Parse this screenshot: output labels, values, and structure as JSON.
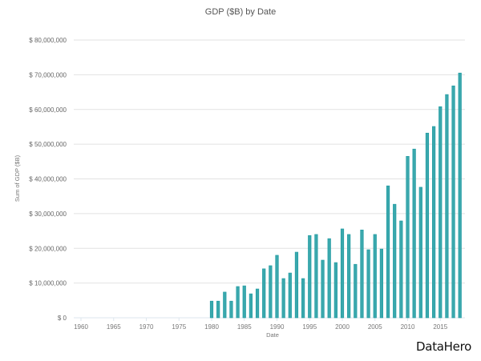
{
  "chart_data": {
    "type": "bar",
    "title": "GDP ($B) by Date",
    "xlabel": "Date",
    "ylabel": "Sum of GDP ($B)",
    "ylim": [
      0,
      80000000
    ],
    "xlim": [
      1960,
      2018
    ],
    "grid": true,
    "legend": "none",
    "bar_color": "#3aa8ad",
    "yticks": [
      {
        "value": 0,
        "label": "$ 0"
      },
      {
        "value": 10000000,
        "label": "$ 10,000,000"
      },
      {
        "value": 20000000,
        "label": "$ 20,000,000"
      },
      {
        "value": 30000000,
        "label": "$ 30,000,000"
      },
      {
        "value": 40000000,
        "label": "$ 40,000,000"
      },
      {
        "value": 50000000,
        "label": "$ 50,000,000"
      },
      {
        "value": 60000000,
        "label": "$ 60,000,000"
      },
      {
        "value": 70000000,
        "label": "$ 70,000,000"
      },
      {
        "value": 80000000,
        "label": "$ 80,000,000"
      }
    ],
    "xticks": [
      {
        "value": 1960,
        "label": "1960"
      },
      {
        "value": 1965,
        "label": "1965"
      },
      {
        "value": 1970,
        "label": "1970"
      },
      {
        "value": 1975,
        "label": "1975"
      },
      {
        "value": 1980,
        "label": "1980"
      },
      {
        "value": 1985,
        "label": "1985"
      },
      {
        "value": 1990,
        "label": "1990"
      },
      {
        "value": 1995,
        "label": "1995"
      },
      {
        "value": 2000,
        "label": "2000"
      },
      {
        "value": 2005,
        "label": "2005"
      },
      {
        "value": 2010,
        "label": "2010"
      },
      {
        "value": 2015,
        "label": "2015"
      }
    ],
    "x": [
      1980,
      1981,
      1982,
      1983,
      1984,
      1985,
      1986,
      1987,
      1988,
      1989,
      1990,
      1991,
      1992,
      1993,
      1994,
      1995,
      1996,
      1997,
      1998,
      1999,
      2000,
      2001,
      2002,
      2003,
      2004,
      2005,
      2006,
      2007,
      2008,
      2009,
      2010,
      2011,
      2012,
      2013,
      2014,
      2015,
      2016,
      2017,
      2018
    ],
    "values": [
      4800000,
      4800000,
      7400000,
      4800000,
      9000000,
      9200000,
      6900000,
      8300000,
      14100000,
      15000000,
      18000000,
      11300000,
      12900000,
      18900000,
      11300000,
      23700000,
      24000000,
      16600000,
      22800000,
      15900000,
      25600000,
      24000000,
      15400000,
      25300000,
      19600000,
      24000000,
      19800000,
      38000000,
      32700000,
      27900000,
      46500000,
      48600000,
      37600000,
      53200000,
      55100000,
      60800000,
      64300000,
      66800000,
      70500000
    ]
  },
  "branding": {
    "logo_text": "DataHero"
  }
}
